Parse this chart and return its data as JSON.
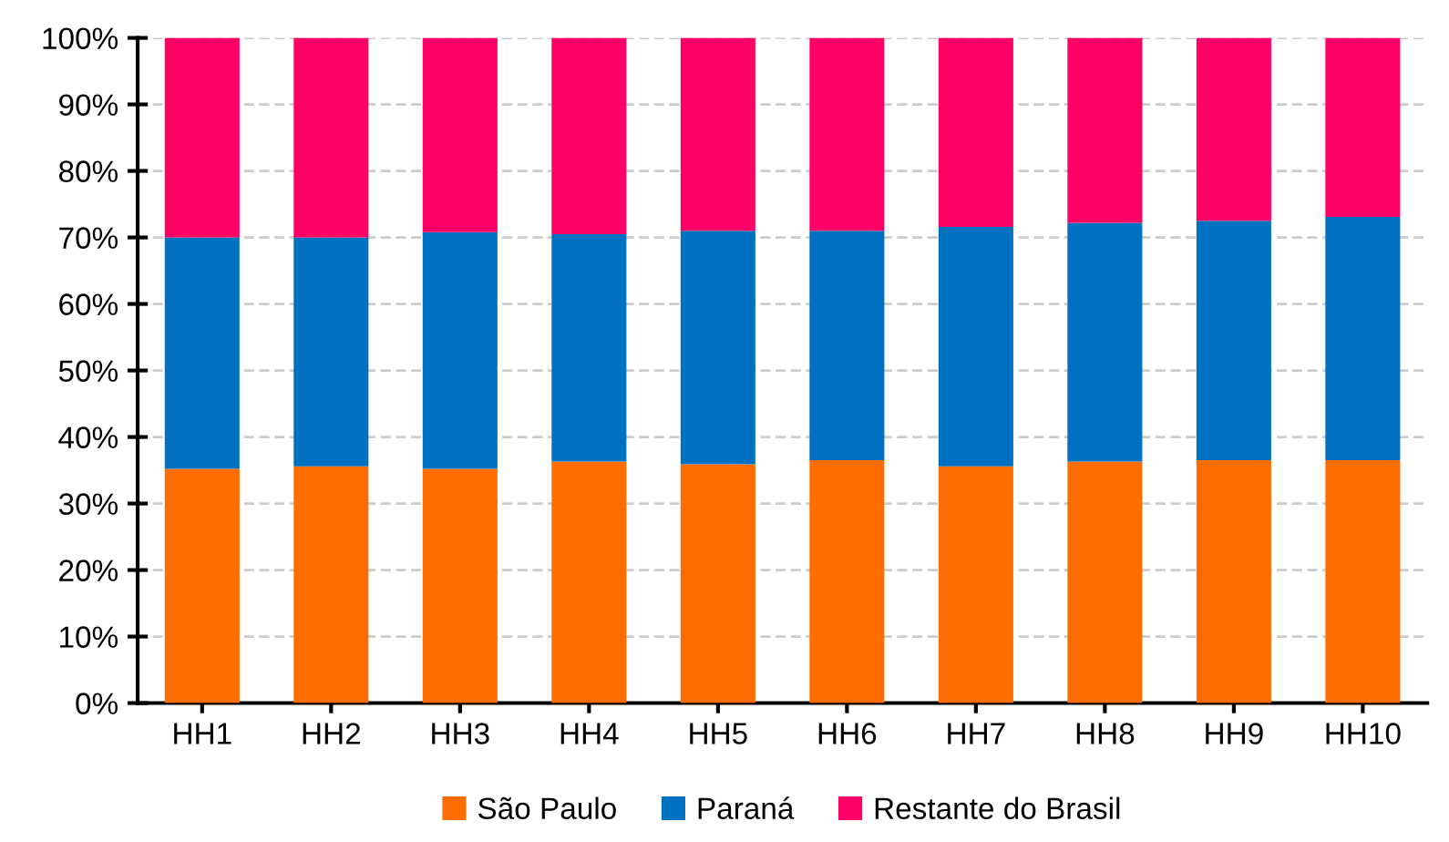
{
  "chart_data": {
    "type": "bar",
    "stacked": true,
    "categories": [
      "HH1",
      "HH2",
      "HH3",
      "HH4",
      "HH5",
      "HH6",
      "HH7",
      "HH8",
      "HH9",
      "HH10"
    ],
    "series": [
      {
        "name": "São Paulo",
        "color": "#ff6d00",
        "values": [
          35.2,
          35.6,
          35.2,
          36.3,
          35.9,
          36.5,
          35.6,
          36.3,
          36.5,
          36.5
        ]
      },
      {
        "name": "Paraná",
        "color": "#0070c0",
        "values": [
          34.8,
          34.4,
          35.6,
          34.2,
          35.1,
          34.5,
          36.0,
          35.9,
          36.0,
          36.6
        ]
      },
      {
        "name": "Restante do Brasil",
        "color": "#ff0066",
        "values": [
          30.0,
          30.0,
          29.2,
          29.5,
          29.0,
          29.0,
          28.4,
          27.8,
          27.5,
          26.9
        ]
      }
    ],
    "ylim": [
      0,
      100
    ],
    "yticks": [
      {
        "value": 0,
        "label": "0%"
      },
      {
        "value": 10,
        "label": "10%"
      },
      {
        "value": 20,
        "label": "20%"
      },
      {
        "value": 30,
        "label": "30%"
      },
      {
        "value": 40,
        "label": "40%"
      },
      {
        "value": 50,
        "label": "50%"
      },
      {
        "value": 60,
        "label": "60%"
      },
      {
        "value": 70,
        "label": "70%"
      },
      {
        "value": 80,
        "label": "80%"
      },
      {
        "value": 90,
        "label": "90%"
      },
      {
        "value": 100,
        "label": "100%"
      }
    ],
    "grid": "y",
    "legend": "bottom"
  }
}
